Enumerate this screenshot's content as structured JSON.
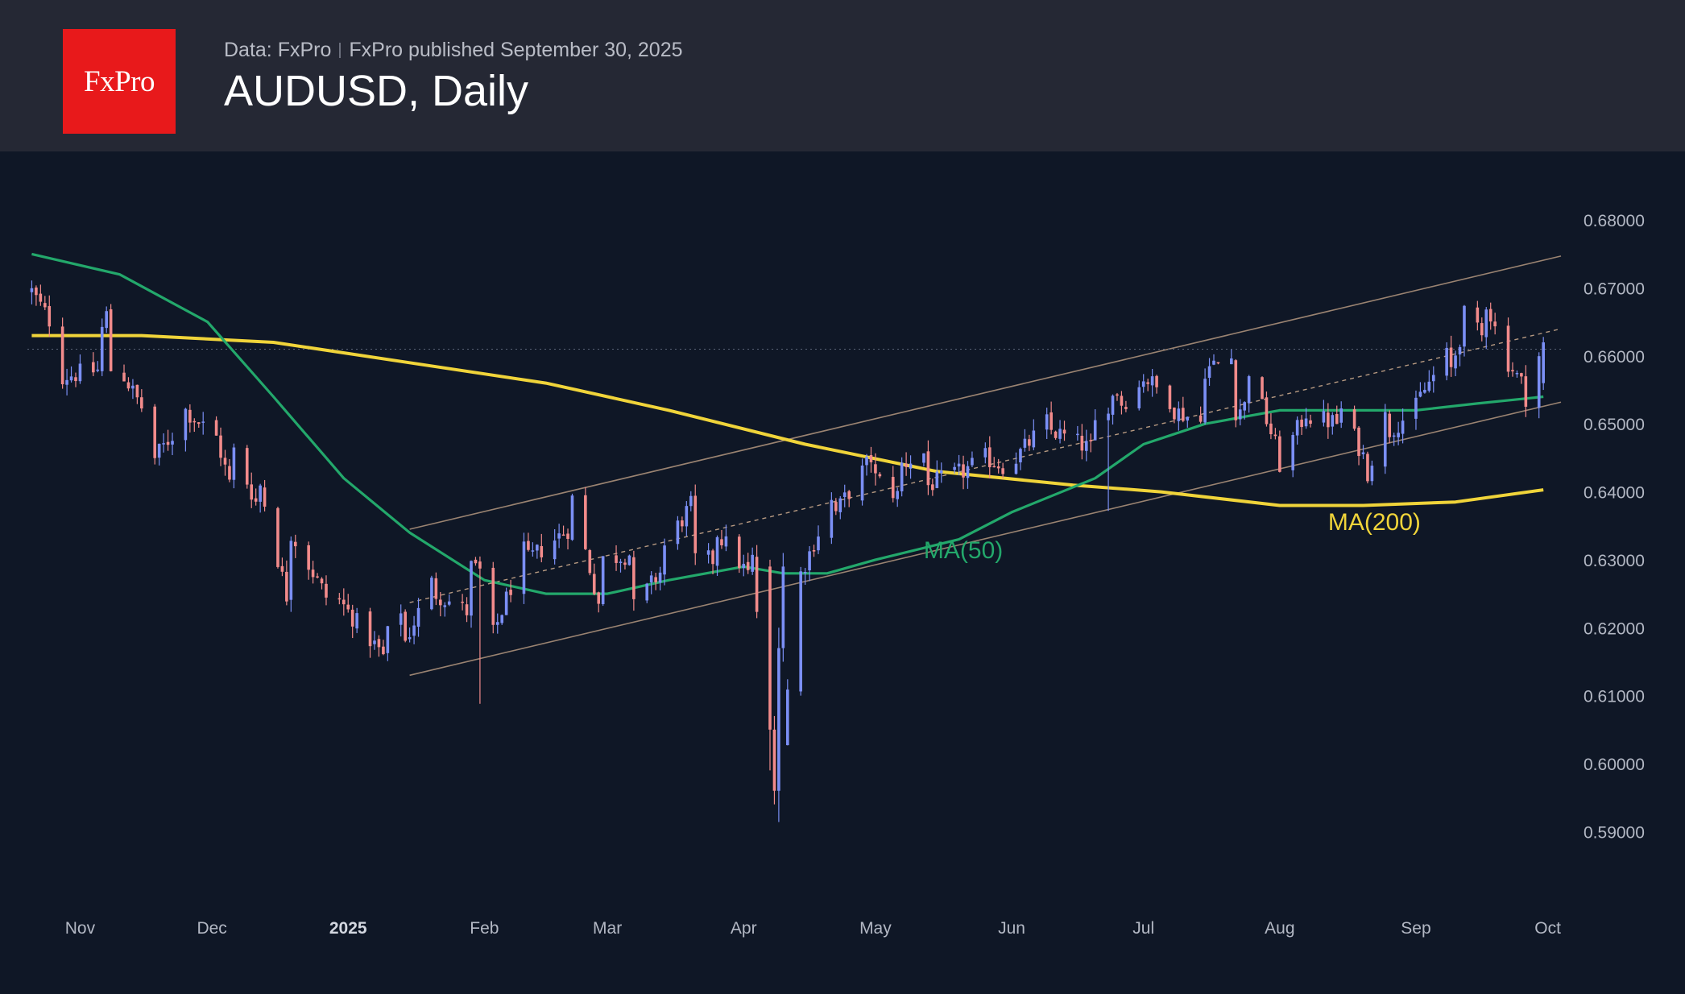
{
  "header": {
    "logo_text": "FxPro",
    "data_source": "Data: FxPro",
    "published": "FxPro published September 30, 2025",
    "title": "AUDUSD, Daily"
  },
  "chart_data": {
    "type": "candlestick",
    "title": "AUDUSD, Daily",
    "ylim": [
      0.5834,
      0.6901
    ],
    "y_ticks": [
      "0.59000",
      "0.60000",
      "0.61000",
      "0.62000",
      "0.63000",
      "0.64000",
      "0.65000",
      "0.66000",
      "0.67000",
      "0.68000"
    ],
    "x_ticks": [
      {
        "label": "Nov",
        "date": "2024-11-01"
      },
      {
        "label": "Dec",
        "date": "2024-12-01"
      },
      {
        "label": "2025",
        "date": "2025-01-01",
        "bold": true
      },
      {
        "label": "Feb",
        "date": "2025-02-01"
      },
      {
        "label": "Mar",
        "date": "2025-03-01"
      },
      {
        "label": "Apr",
        "date": "2025-04-01"
      },
      {
        "label": "May",
        "date": "2025-05-01"
      },
      {
        "label": "Jun",
        "date": "2025-06-01"
      },
      {
        "label": "Jul",
        "date": "2025-07-01"
      },
      {
        "label": "Aug",
        "date": "2025-08-01"
      },
      {
        "label": "Sep",
        "date": "2025-09-01"
      },
      {
        "label": "Oct",
        "date": "2025-10-01"
      }
    ],
    "candle_anchors": [
      [
        "2024-10-21",
        0.6695,
        0.662
      ],
      [
        "2024-10-28",
        0.657,
        0.662
      ],
      [
        "2024-11-06",
        0.664,
        0.658
      ],
      [
        "2024-11-08",
        0.658,
        0.668
      ],
      [
        "2024-11-11",
        0.657,
        0.651
      ],
      [
        "2024-11-18",
        0.645,
        0.649
      ],
      [
        "2024-11-25",
        0.652,
        0.651
      ],
      [
        "2024-12-02",
        0.648,
        0.648
      ],
      [
        "2024-12-06",
        0.646,
        0.639
      ],
      [
        "2024-12-12",
        0.641,
        0.637
      ],
      [
        "2024-12-19",
        0.634,
        0.622
      ],
      [
        "2024-12-30",
        0.624,
        0.621
      ],
      [
        "2025-01-10",
        0.619,
        0.615
      ],
      [
        "2025-01-14",
        0.618,
        0.624
      ],
      [
        "2025-01-21",
        0.625,
        0.628
      ],
      [
        "2025-01-29",
        0.629,
        0.622
      ],
      [
        "2025-02-03",
        0.619,
        0.627
      ],
      [
        "2025-02-11",
        0.63,
        0.633
      ],
      [
        "2025-02-21",
        0.639,
        0.635
      ],
      [
        "2025-02-28",
        0.63,
        0.621
      ],
      [
        "2025-03-07",
        0.623,
        0.631
      ],
      [
        "2025-03-14",
        0.632,
        0.629
      ],
      [
        "2025-03-21",
        0.63,
        0.639
      ],
      [
        "2025-03-26",
        0.634,
        0.63
      ],
      [
        "2025-04-03",
        0.63,
        0.627
      ],
      [
        "2025-04-07",
        0.61,
        0.6
      ],
      [
        "2025-04-08",
        0.6,
        0.596
      ],
      [
        "2025-04-09",
        0.596,
        0.618
      ],
      [
        "2025-04-14",
        0.628,
        0.633
      ],
      [
        "2025-04-22",
        0.637,
        0.64
      ],
      [
        "2025-05-01",
        0.642,
        0.646
      ],
      [
        "2025-05-07",
        0.644,
        0.639
      ],
      [
        "2025-05-13",
        0.641,
        0.646
      ],
      [
        "2025-05-21",
        0.643,
        0.643
      ],
      [
        "2025-05-26",
        0.645,
        0.645
      ],
      [
        "2025-06-02",
        0.645,
        0.643
      ],
      [
        "2025-06-10",
        0.649,
        0.651
      ],
      [
        "2025-06-20",
        0.65,
        0.646
      ],
      [
        "2025-06-26",
        0.653,
        0.656
      ],
      [
        "2025-07-01",
        0.657,
        0.656
      ],
      [
        "2025-07-08",
        0.652,
        0.653
      ],
      [
        "2025-07-15",
        0.658,
        0.65
      ],
      [
        "2025-07-22",
        0.652,
        0.66
      ],
      [
        "2025-07-25",
        0.658,
        0.653
      ],
      [
        "2025-08-01",
        0.644,
        0.645
      ],
      [
        "2025-08-08",
        0.651,
        0.653
      ],
      [
        "2025-08-15",
        0.652,
        0.65
      ],
      [
        "2025-08-21",
        0.643,
        0.644
      ],
      [
        "2025-08-26",
        0.649,
        0.653
      ],
      [
        "2025-09-02",
        0.654,
        0.653
      ],
      [
        "2025-09-09",
        0.658,
        0.661
      ],
      [
        "2025-09-12",
        0.666,
        0.665
      ],
      [
        "2025-09-17",
        0.668,
        0.662
      ],
      [
        "2025-09-22",
        0.659,
        0.658
      ],
      [
        "2025-09-26",
        0.654,
        0.655
      ],
      [
        "2025-09-30",
        0.656,
        0.662
      ]
    ],
    "ma50": [
      [
        "2024-10-21",
        0.675
      ],
      [
        "2024-11-10",
        0.672
      ],
      [
        "2024-11-30",
        0.665
      ],
      [
        "2024-12-15",
        0.654
      ],
      [
        "2024-12-31",
        0.642
      ],
      [
        "2025-01-15",
        0.634
      ],
      [
        "2025-02-01",
        0.627
      ],
      [
        "2025-02-15",
        0.625
      ],
      [
        "2025-03-01",
        0.625
      ],
      [
        "2025-03-15",
        0.627
      ],
      [
        "2025-04-01",
        0.629
      ],
      [
        "2025-04-10",
        0.628
      ],
      [
        "2025-04-20",
        0.628
      ],
      [
        "2025-05-01",
        0.63
      ],
      [
        "2025-05-20",
        0.633
      ],
      [
        "2025-06-01",
        0.637
      ],
      [
        "2025-06-20",
        0.642
      ],
      [
        "2025-07-01",
        0.647
      ],
      [
        "2025-07-15",
        0.65
      ],
      [
        "2025-08-01",
        0.652
      ],
      [
        "2025-08-15",
        0.652
      ],
      [
        "2025-09-01",
        0.652
      ],
      [
        "2025-09-15",
        0.653
      ],
      [
        "2025-09-30",
        0.654
      ]
    ],
    "ma200": [
      [
        "2024-10-21",
        0.663
      ],
      [
        "2024-11-15",
        0.663
      ],
      [
        "2024-12-15",
        0.662
      ],
      [
        "2025-01-15",
        0.659
      ],
      [
        "2025-02-15",
        0.656
      ],
      [
        "2025-03-15",
        0.652
      ],
      [
        "2025-04-15",
        0.647
      ],
      [
        "2025-05-15",
        0.643
      ],
      [
        "2025-06-15",
        0.641
      ],
      [
        "2025-07-05",
        0.64
      ],
      [
        "2025-08-01",
        0.638
      ],
      [
        "2025-08-20",
        0.638
      ],
      [
        "2025-09-10",
        0.6385
      ],
      [
        "2025-09-30",
        0.6403
      ]
    ],
    "channel": {
      "lower": [
        [
          "2025-01-15",
          0.613
        ],
        [
          "2025-10-04",
          0.6532
        ]
      ],
      "mid": [
        [
          "2025-01-15",
          0.6237
        ],
        [
          "2025-10-04",
          0.664
        ]
      ],
      "upper": [
        [
          "2025-01-15",
          0.6345
        ],
        [
          "2025-10-04",
          0.6747
        ]
      ]
    },
    "current_price_line": 0.661,
    "series_labels": [
      {
        "text": "MA(50)",
        "color": "#23a86b",
        "date": "2025-05-12",
        "value": 0.6302
      },
      {
        "text": "MA(200)",
        "color": "#f0d43a",
        "date": "2025-08-12",
        "value": 0.6344
      }
    ],
    "colors": {
      "up": "#7b8ff5",
      "down": "#f28b8b",
      "ma50": "#23a86b",
      "ma200": "#f0d43a",
      "channel": "#c9a88b",
      "background": "#0f1726",
      "header": "#252834",
      "logo": "#e8191b"
    }
  }
}
